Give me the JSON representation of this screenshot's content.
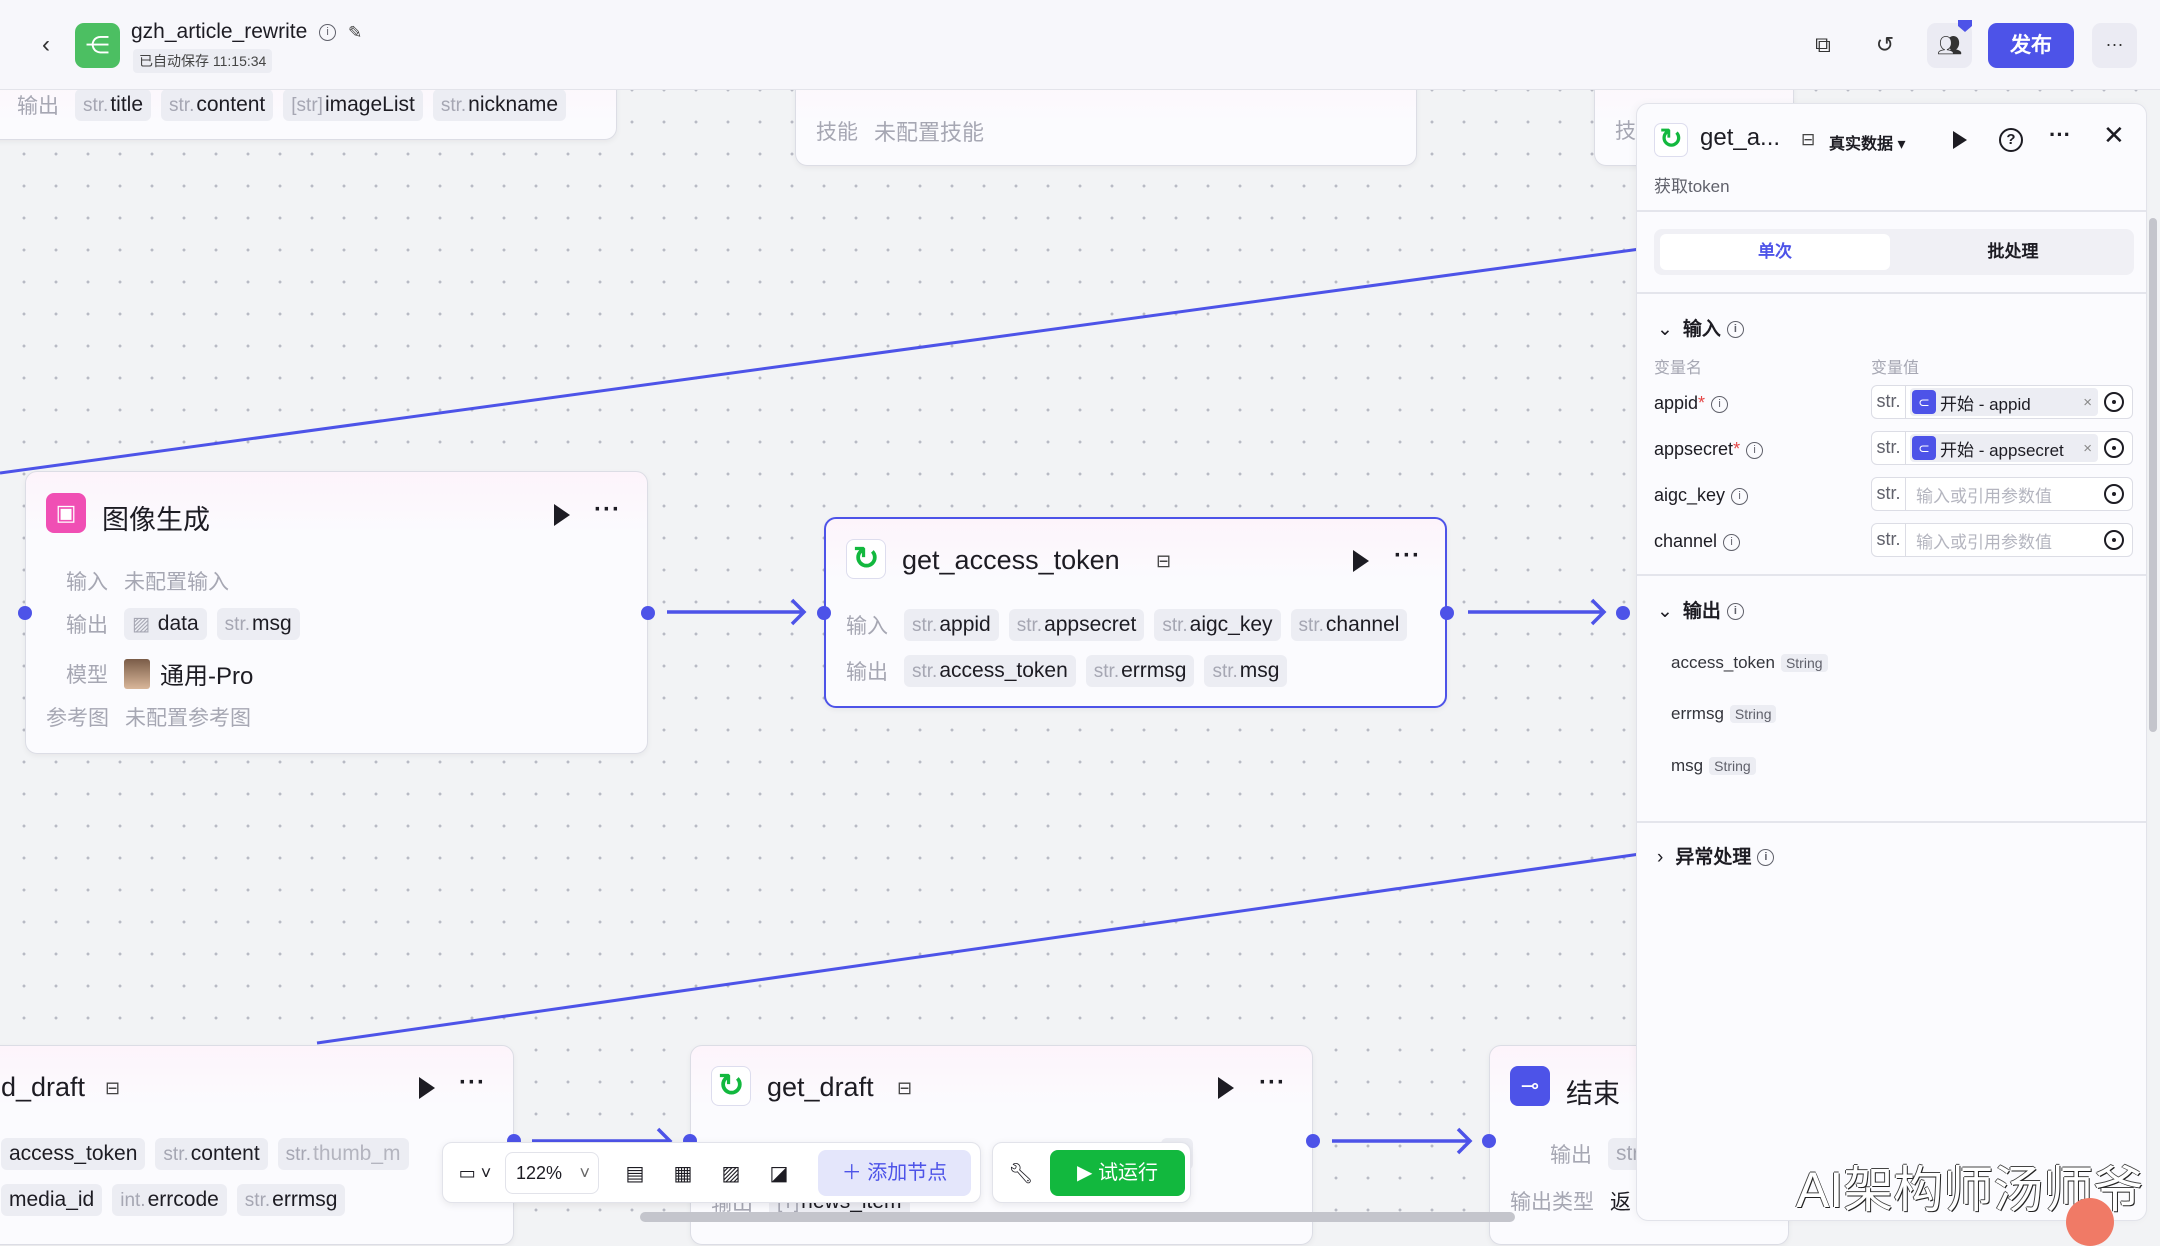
{
  "header": {
    "app_title": "gzh_article_rewrite",
    "autosave": "已自动保存 11:15:34",
    "publish_label": "发布",
    "more_label": "···"
  },
  "colors": {
    "accent": "#4d53e8",
    "run_green": "#12b83e",
    "app_icon_green": "#4cbf62",
    "image_node_pink": "#f04fb4"
  },
  "canvas": {
    "top_left_node": {
      "output_label": "输出",
      "outputs": [
        {
          "type": "str.",
          "name": "title"
        },
        {
          "type": "str.",
          "name": "content"
        },
        {
          "type": "[str]",
          "name": "imageList"
        },
        {
          "type": "str.",
          "name": "nickname"
        }
      ]
    },
    "top_mid_node": {
      "skill_label": "技能",
      "skill_value": "未配置技能"
    },
    "top_right_node": {
      "partial_label": "技"
    },
    "image_node": {
      "title": "图像生成",
      "input_label": "输入",
      "input_value": "未配置输入",
      "output_label": "输出",
      "outputs": [
        {
          "type": "img",
          "name": "data"
        },
        {
          "type": "str.",
          "name": "msg"
        }
      ],
      "model_label": "模型",
      "model_value": "通用-Pro",
      "ref_label": "参考图",
      "ref_value": "未配置参考图"
    },
    "token_node": {
      "title": "get_access_token",
      "input_label": "输入",
      "inputs": [
        {
          "type": "str.",
          "name": "appid"
        },
        {
          "type": "str.",
          "name": "appsecret"
        },
        {
          "type": "str.",
          "name": "aigc_key"
        },
        {
          "type": "str.",
          "name": "channel"
        }
      ],
      "output_label": "输出",
      "outputs": [
        {
          "type": "str.",
          "name": "access_token"
        },
        {
          "type": "str.",
          "name": "errmsg"
        },
        {
          "type": "str.",
          "name": "msg"
        }
      ]
    },
    "add_draft_node": {
      "title": "d_draft",
      "row1": [
        {
          "type": "",
          "name": "access_token"
        },
        {
          "type": "str.",
          "name": "content"
        },
        {
          "type": "str.",
          "name": "thumb_m"
        }
      ],
      "row2": [
        {
          "type": "",
          "name": "media_id"
        },
        {
          "type": "int.",
          "name": "errcode"
        },
        {
          "type": "str.",
          "name": "errmsg"
        }
      ]
    },
    "get_draft_node": {
      "title": "get_draft",
      "output_label": "输出",
      "output_partial": "news_item",
      "row1_partial": "el"
    },
    "end_node": {
      "title": "结束",
      "output_label": "输出",
      "output_type_label": "输出类型",
      "output_type_value": "返",
      "output_tag_partial": "str"
    }
  },
  "toolbar": {
    "zoom": "122%",
    "add_node_label": "添加节点",
    "run_label": "试运行"
  },
  "panel": {
    "title": "get_a...",
    "data_mode": "真实数据",
    "subtitle": "获取token",
    "tabs": [
      {
        "label": "单次",
        "active": true
      },
      {
        "label": "批处理",
        "active": false
      }
    ],
    "input_section": "输入",
    "col_name": "变量名",
    "col_value": "变量值",
    "inputs": [
      {
        "name": "appid",
        "required": "*",
        "type": "str.",
        "ref": "开始 - appid"
      },
      {
        "name": "appsecret",
        "required": "*",
        "type": "str.",
        "ref": "开始 - appsecret"
      },
      {
        "name": "aigc_key",
        "type": "str.",
        "placeholder": "输入或引用参数值"
      },
      {
        "name": "channel",
        "type": "str.",
        "placeholder": "输入或引用参数值"
      }
    ],
    "output_section": "输出",
    "outputs": [
      {
        "name": "access_token",
        "type": "String"
      },
      {
        "name": "errmsg",
        "type": "String"
      },
      {
        "name": "msg",
        "type": "String"
      }
    ],
    "exception_section": "异常处理"
  },
  "watermark": "AI架构师汤师爷"
}
